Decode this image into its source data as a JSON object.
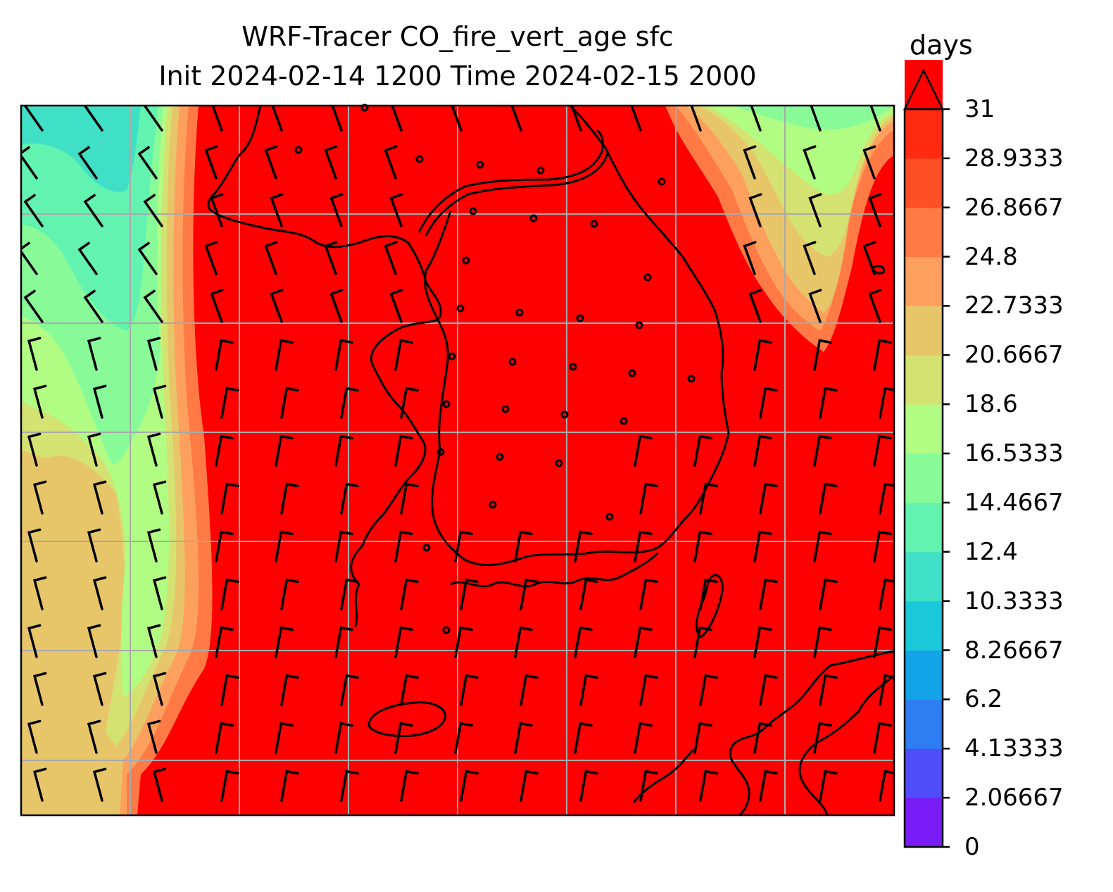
{
  "title": {
    "line1": "WRF-Tracer CO_fire_vert_age sfc",
    "line2": "Init 2024-02-14 1200 Time 2024-02-15 2000"
  },
  "colorbar": {
    "units": "days",
    "min": 0,
    "max": 31,
    "extend": "max",
    "tick_labels": [
      "0",
      "2.06667",
      "4.13333",
      "6.2",
      "8.26667",
      "10.3333",
      "12.4",
      "14.4667",
      "16.5333",
      "18.6",
      "20.6667",
      "22.7333",
      "24.8",
      "26.8667",
      "28.9333",
      "31"
    ],
    "colors": [
      "#7a1cf6",
      "#4f4dfa",
      "#2e7ef2",
      "#12a4e6",
      "#1bc8d9",
      "#3fe0c6",
      "#62f3b0",
      "#88fb98",
      "#b1fc83",
      "#d4e271",
      "#e7c66a",
      "#fda05d",
      "#ff7a44",
      "#ff4f26",
      "#ff2a10",
      "#ff0000"
    ]
  },
  "map": {
    "field": "CO_fire_vert_age",
    "level": "sfc",
    "dominant_color": "#ff0000",
    "coast_color": "#000000",
    "grid_color": "#aaaaaa"
  }
}
